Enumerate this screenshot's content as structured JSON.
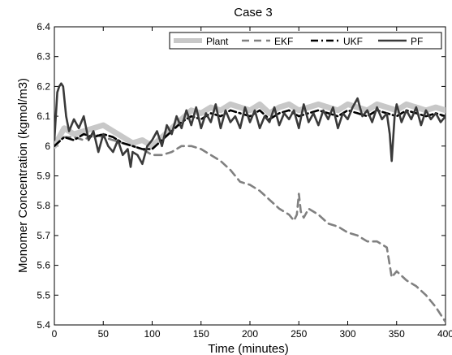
{
  "chart_data": {
    "type": "line",
    "title": "Case 3",
    "xlabel": "Time (minutes)",
    "ylabel": "Monomer Concentration (kgmol/m3)",
    "xlim": [
      0,
      400
    ],
    "ylim": [
      5.4,
      6.4
    ],
    "x_ticks": [
      0,
      50,
      100,
      150,
      200,
      250,
      300,
      350,
      400
    ],
    "y_ticks": [
      5.4,
      5.5,
      5.6,
      5.7,
      5.8,
      5.9,
      6.0,
      6.1,
      6.2,
      6.3,
      6.4
    ],
    "x_tick_labels": [
      "0",
      "50",
      "100",
      "150",
      "200",
      "250",
      "300",
      "350",
      "400"
    ],
    "y_tick_labels": [
      "5.4",
      "5.5",
      "5.6",
      "5.7",
      "5.8",
      "5.9",
      "6",
      "6.1",
      "6.2",
      "6.3",
      "6.4"
    ],
    "grid": false,
    "legend_position": "top-right",
    "series": [
      {
        "name": "Plant",
        "color": "#c8c8c8",
        "style": "thick-solid",
        "x": [
          0,
          10,
          20,
          30,
          40,
          50,
          60,
          70,
          80,
          90,
          100,
          110,
          120,
          130,
          140,
          150,
          160,
          170,
          180,
          190,
          200,
          210,
          220,
          230,
          240,
          250,
          260,
          270,
          280,
          290,
          300,
          310,
          320,
          330,
          340,
          350,
          360,
          370,
          380,
          390,
          400
        ],
        "y": [
          6.0,
          6.06,
          6.04,
          6.05,
          6.06,
          6.07,
          6.05,
          6.03,
          6.01,
          6.02,
          6.0,
          6.03,
          6.06,
          6.09,
          6.12,
          6.11,
          6.13,
          6.12,
          6.14,
          6.13,
          6.12,
          6.14,
          6.11,
          6.13,
          6.14,
          6.12,
          6.13,
          6.14,
          6.13,
          6.12,
          6.14,
          6.13,
          6.12,
          6.14,
          6.13,
          6.12,
          6.14,
          6.13,
          6.12,
          6.13,
          6.12
        ]
      },
      {
        "name": "EKF",
        "color": "#808080",
        "style": "dashed",
        "x": [
          0,
          10,
          20,
          30,
          40,
          50,
          60,
          70,
          80,
          90,
          100,
          110,
          120,
          130,
          140,
          150,
          160,
          170,
          180,
          190,
          200,
          210,
          220,
          230,
          240,
          245,
          248,
          250,
          252,
          255,
          260,
          270,
          280,
          290,
          300,
          310,
          320,
          330,
          340,
          345,
          350,
          360,
          370,
          380,
          390,
          400
        ],
        "y": [
          6.0,
          6.03,
          6.03,
          6.02,
          6.04,
          6.03,
          6.02,
          6.01,
          6.0,
          5.99,
          5.97,
          5.97,
          5.98,
          6.0,
          6.0,
          5.99,
          5.97,
          5.95,
          5.92,
          5.88,
          5.87,
          5.85,
          5.82,
          5.79,
          5.77,
          5.75,
          5.77,
          5.84,
          5.78,
          5.76,
          5.79,
          5.77,
          5.74,
          5.73,
          5.71,
          5.7,
          5.68,
          5.68,
          5.66,
          5.56,
          5.58,
          5.55,
          5.53,
          5.5,
          5.46,
          5.41
        ]
      },
      {
        "name": "UKF",
        "color": "#000000",
        "style": "dash-dot",
        "x": [
          0,
          10,
          20,
          30,
          40,
          50,
          60,
          70,
          80,
          90,
          100,
          110,
          120,
          130,
          140,
          150,
          160,
          170,
          180,
          190,
          200,
          210,
          220,
          230,
          240,
          250,
          260,
          270,
          280,
          290,
          300,
          310,
          320,
          330,
          340,
          350,
          360,
          370,
          380,
          390,
          400
        ],
        "y": [
          6.0,
          6.03,
          6.02,
          6.04,
          6.03,
          6.04,
          6.03,
          6.01,
          6.0,
          5.99,
          5.99,
          6.02,
          6.05,
          6.08,
          6.1,
          6.09,
          6.11,
          6.1,
          6.12,
          6.11,
          6.1,
          6.12,
          6.09,
          6.11,
          6.12,
          6.1,
          6.11,
          6.12,
          6.11,
          6.1,
          6.12,
          6.11,
          6.1,
          6.12,
          6.11,
          6.1,
          6.12,
          6.11,
          6.1,
          6.11,
          6.1
        ]
      },
      {
        "name": "PF",
        "color": "#3a3a3a",
        "style": "solid",
        "x": [
          0,
          3,
          5,
          7,
          9,
          12,
          15,
          20,
          25,
          30,
          35,
          40,
          45,
          50,
          55,
          60,
          65,
          70,
          75,
          78,
          80,
          85,
          90,
          95,
          100,
          105,
          110,
          115,
          120,
          125,
          130,
          135,
          140,
          145,
          150,
          155,
          160,
          165,
          170,
          175,
          180,
          185,
          190,
          195,
          200,
          205,
          210,
          215,
          220,
          225,
          230,
          235,
          240,
          245,
          250,
          255,
          260,
          265,
          270,
          275,
          280,
          285,
          290,
          295,
          300,
          305,
          310,
          315,
          320,
          325,
          330,
          335,
          340,
          343,
          345,
          348,
          350,
          355,
          360,
          365,
          370,
          375,
          380,
          385,
          390,
          395,
          400
        ],
        "y": [
          6.02,
          6.18,
          6.2,
          6.21,
          6.2,
          6.1,
          6.05,
          6.09,
          6.06,
          6.1,
          6.02,
          6.05,
          5.98,
          6.04,
          6.0,
          5.98,
          6.02,
          5.97,
          5.99,
          5.93,
          5.98,
          5.97,
          5.94,
          6.0,
          6.02,
          6.05,
          6.0,
          6.07,
          6.04,
          6.1,
          6.06,
          6.12,
          6.07,
          6.13,
          6.06,
          6.11,
          6.08,
          6.14,
          6.06,
          6.12,
          6.08,
          6.1,
          6.06,
          6.13,
          6.08,
          6.12,
          6.06,
          6.1,
          6.08,
          6.13,
          6.07,
          6.11,
          6.09,
          6.12,
          6.06,
          6.14,
          6.08,
          6.11,
          6.07,
          6.12,
          6.09,
          6.13,
          6.06,
          6.11,
          6.09,
          6.13,
          6.16,
          6.1,
          6.12,
          6.08,
          6.13,
          6.09,
          6.11,
          6.04,
          5.95,
          6.1,
          6.14,
          6.08,
          6.12,
          6.09,
          6.13,
          6.07,
          6.12,
          6.09,
          6.11,
          6.08,
          6.1
        ]
      }
    ]
  }
}
